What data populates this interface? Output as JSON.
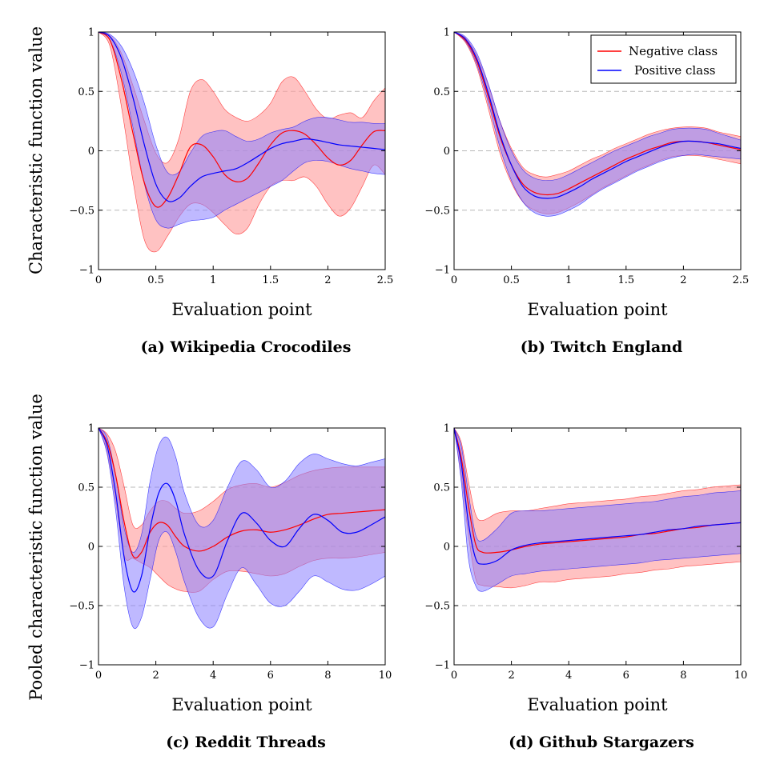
{
  "figure": {
    "ylabel_top": "Characteristic function value",
    "ylabel_bottom": "Pooled characteristic function value"
  },
  "legend": {
    "negative": "Negative class",
    "positive": "Positive class"
  },
  "colors": {
    "negative": "#ff0000",
    "positive": "#0000ff",
    "negative_fill": "#ff9a9a",
    "positive_fill": "#8a80ff",
    "overlap_fill": "#a06ed8"
  },
  "chart_data": [
    {
      "type": "area",
      "caption": "(a) Wikipedia Crocodiles",
      "xlabel": "Evaluation point",
      "xlim": [
        0,
        2.5
      ],
      "ylim": [
        -1,
        1
      ],
      "xticks": [
        0,
        0.5,
        1,
        1.5,
        2,
        2.5
      ],
      "xtick_labels": [
        "0",
        "0.5",
        "1",
        "1.5",
        "2",
        "2.5"
      ],
      "yticks": [
        -1,
        -0.5,
        0,
        0.5,
        1
      ],
      "ytick_labels": [
        "−1",
        "−0.5",
        "0",
        "0.5",
        "1"
      ],
      "grid": "dashed horizontal at -0.5, 0, 0.5",
      "series": [
        {
          "name": "Negative class",
          "x": [
            0,
            0.1,
            0.2,
            0.3,
            0.4,
            0.5,
            0.6,
            0.7,
            0.8,
            0.9,
            1.0,
            1.1,
            1.2,
            1.3,
            1.4,
            1.5,
            1.6,
            1.7,
            1.8,
            1.9,
            2.0,
            2.1,
            2.2,
            2.3,
            2.4,
            2.5
          ],
          "mean": [
            1,
            0.93,
            0.6,
            0.15,
            -0.27,
            -0.47,
            -0.4,
            -0.2,
            0.03,
            0.05,
            -0.05,
            -0.2,
            -0.26,
            -0.23,
            -0.1,
            0.05,
            0.15,
            0.17,
            0.14,
            0.05,
            -0.06,
            -0.12,
            -0.08,
            0.05,
            0.16,
            0.17
          ],
          "upper": [
            1,
            0.97,
            0.82,
            0.55,
            0.25,
            -0.02,
            -0.1,
            0.1,
            0.5,
            0.6,
            0.5,
            0.35,
            0.28,
            0.25,
            0.3,
            0.4,
            0.58,
            0.62,
            0.5,
            0.35,
            0.27,
            0.3,
            0.32,
            0.28,
            0.42,
            0.53
          ],
          "lower": [
            1,
            0.88,
            0.37,
            -0.25,
            -0.75,
            -0.85,
            -0.72,
            -0.56,
            -0.45,
            -0.45,
            -0.52,
            -0.62,
            -0.7,
            -0.65,
            -0.45,
            -0.3,
            -0.25,
            -0.25,
            -0.22,
            -0.3,
            -0.45,
            -0.55,
            -0.48,
            -0.3,
            -0.12,
            -0.2
          ]
        },
        {
          "name": "Positive class",
          "x": [
            0,
            0.1,
            0.2,
            0.3,
            0.4,
            0.5,
            0.6,
            0.7,
            0.8,
            0.9,
            1.0,
            1.1,
            1.2,
            1.3,
            1.4,
            1.5,
            1.6,
            1.7,
            1.8,
            1.9,
            2.0,
            2.1,
            2.2,
            2.3,
            2.4,
            2.5
          ],
          "mean": [
            1,
            0.96,
            0.78,
            0.45,
            0.05,
            -0.28,
            -0.42,
            -0.4,
            -0.3,
            -0.22,
            -0.19,
            -0.17,
            -0.15,
            -0.1,
            -0.04,
            0.02,
            0.06,
            0.08,
            0.1,
            0.09,
            0.07,
            0.05,
            0.04,
            0.03,
            0.02,
            0.01
          ],
          "upper": [
            1,
            0.98,
            0.88,
            0.68,
            0.4,
            0.05,
            -0.18,
            -0.18,
            -0.02,
            0.12,
            0.16,
            0.17,
            0.12,
            0.08,
            0.1,
            0.15,
            0.18,
            0.2,
            0.25,
            0.28,
            0.28,
            0.26,
            0.24,
            0.24,
            0.23,
            0.23
          ],
          "lower": [
            1,
            0.93,
            0.65,
            0.2,
            -0.28,
            -0.58,
            -0.65,
            -0.62,
            -0.59,
            -0.58,
            -0.56,
            -0.5,
            -0.45,
            -0.4,
            -0.35,
            -0.3,
            -0.25,
            -0.17,
            -0.1,
            -0.08,
            -0.09,
            -0.12,
            -0.15,
            -0.17,
            -0.19,
            -0.2
          ]
        }
      ]
    },
    {
      "type": "area",
      "caption": "(b) Twitch England",
      "xlabel": "Evaluation point",
      "xlim": [
        0,
        2.5
      ],
      "ylim": [
        -1,
        1
      ],
      "xticks": [
        0,
        0.5,
        1,
        1.5,
        2,
        2.5
      ],
      "xtick_labels": [
        "0",
        "0.5",
        "1",
        "1.5",
        "2",
        "2.5"
      ],
      "yticks": [
        -1,
        -0.5,
        0,
        0.5,
        1
      ],
      "ytick_labels": [
        "−1",
        "−0.5",
        "0",
        "0.5",
        "1"
      ],
      "grid": "dashed horizontal at -0.5, 0, 0.5",
      "legend_position": "top-right",
      "series": [
        {
          "name": "Negative class",
          "x": [
            0,
            0.1,
            0.2,
            0.3,
            0.4,
            0.5,
            0.6,
            0.7,
            0.8,
            0.9,
            1.0,
            1.1,
            1.2,
            1.3,
            1.4,
            1.5,
            1.6,
            1.7,
            1.8,
            1.9,
            2.0,
            2.1,
            2.2,
            2.3,
            2.4,
            2.5
          ],
          "mean": [
            1,
            0.93,
            0.75,
            0.45,
            0.12,
            -0.12,
            -0.28,
            -0.35,
            -0.37,
            -0.36,
            -0.32,
            -0.27,
            -0.22,
            -0.17,
            -0.12,
            -0.07,
            -0.03,
            0.01,
            0.04,
            0.07,
            0.08,
            0.08,
            0.07,
            0.05,
            0.03,
            0.01
          ],
          "upper": [
            1,
            0.95,
            0.8,
            0.55,
            0.25,
            0.02,
            -0.14,
            -0.2,
            -0.22,
            -0.2,
            -0.17,
            -0.12,
            -0.07,
            -0.03,
            0.02,
            0.06,
            0.1,
            0.14,
            0.17,
            0.19,
            0.2,
            0.2,
            0.19,
            0.16,
            0.14,
            0.12
          ],
          "lower": [
            1,
            0.91,
            0.7,
            0.35,
            -0.02,
            -0.27,
            -0.43,
            -0.5,
            -0.53,
            -0.52,
            -0.48,
            -0.43,
            -0.37,
            -0.31,
            -0.26,
            -0.21,
            -0.16,
            -0.12,
            -0.08,
            -0.05,
            -0.04,
            -0.04,
            -0.05,
            -0.07,
            -0.09,
            -0.11
          ]
        },
        {
          "name": "Positive class",
          "x": [
            0,
            0.1,
            0.2,
            0.3,
            0.4,
            0.5,
            0.6,
            0.7,
            0.8,
            0.9,
            1.0,
            1.1,
            1.2,
            1.3,
            1.4,
            1.5,
            1.6,
            1.7,
            1.8,
            1.9,
            2.0,
            2.1,
            2.2,
            2.3,
            2.4,
            2.5
          ],
          "mean": [
            1,
            0.94,
            0.77,
            0.48,
            0.14,
            -0.12,
            -0.3,
            -0.38,
            -0.4,
            -0.39,
            -0.35,
            -0.3,
            -0.24,
            -0.19,
            -0.14,
            -0.09,
            -0.05,
            -0.01,
            0.03,
            0.06,
            0.08,
            0.08,
            0.07,
            0.06,
            0.04,
            0.02
          ],
          "upper": [
            1,
            0.96,
            0.82,
            0.56,
            0.25,
            0.0,
            -0.16,
            -0.23,
            -0.25,
            -0.24,
            -0.2,
            -0.15,
            -0.1,
            -0.05,
            0.0,
            0.04,
            0.08,
            0.12,
            0.15,
            0.18,
            0.19,
            0.19,
            0.18,
            0.15,
            0.12,
            0.09
          ],
          "lower": [
            1,
            0.92,
            0.72,
            0.4,
            0.03,
            -0.25,
            -0.43,
            -0.52,
            -0.55,
            -0.54,
            -0.5,
            -0.45,
            -0.38,
            -0.32,
            -0.27,
            -0.22,
            -0.17,
            -0.13,
            -0.09,
            -0.06,
            -0.04,
            -0.03,
            -0.04,
            -0.05,
            -0.06,
            -0.07
          ]
        }
      ]
    },
    {
      "type": "area",
      "caption": "(c) Reddit Threads",
      "xlabel": "Evaluation point",
      "xlim": [
        0,
        10
      ],
      "ylim": [
        -1,
        1
      ],
      "xticks": [
        0,
        2,
        4,
        6,
        8,
        10
      ],
      "xtick_labels": [
        "0",
        "2",
        "4",
        "6",
        "8",
        "10"
      ],
      "yticks": [
        -1,
        -0.5,
        0,
        0.5,
        1
      ],
      "ytick_labels": [
        "−1",
        "−0.5",
        "0",
        "0.5",
        "1"
      ],
      "grid": "dashed horizontal at -0.5, 0, 0.5",
      "series": [
        {
          "name": "Negative class",
          "x": [
            0,
            0.3,
            0.6,
            0.9,
            1.2,
            1.5,
            1.8,
            2.1,
            2.4,
            2.7,
            3.0,
            3.5,
            4.0,
            4.5,
            5.0,
            5.5,
            6.0,
            6.5,
            7.0,
            7.5,
            8.0,
            8.5,
            9.0,
            9.5,
            10.0
          ],
          "mean": [
            1,
            0.88,
            0.6,
            0.2,
            -0.08,
            -0.05,
            0.12,
            0.2,
            0.18,
            0.08,
            0.0,
            -0.04,
            0.0,
            0.08,
            0.13,
            0.14,
            0.12,
            0.14,
            0.18,
            0.23,
            0.27,
            0.28,
            0.29,
            0.3,
            0.31
          ],
          "upper": [
            1,
            0.95,
            0.8,
            0.5,
            0.18,
            0.18,
            0.3,
            0.38,
            0.38,
            0.32,
            0.28,
            0.3,
            0.38,
            0.48,
            0.52,
            0.53,
            0.5,
            0.54,
            0.6,
            0.64,
            0.66,
            0.67,
            0.67,
            0.67,
            0.67
          ],
          "lower": [
            1,
            0.8,
            0.38,
            -0.08,
            -0.1,
            -0.14,
            -0.18,
            -0.25,
            -0.32,
            -0.36,
            -0.38,
            -0.38,
            -0.28,
            -0.21,
            -0.21,
            -0.23,
            -0.25,
            -0.23,
            -0.17,
            -0.12,
            -0.1,
            -0.1,
            -0.09,
            -0.07,
            -0.05
          ]
        },
        {
          "name": "Positive class",
          "x": [
            0,
            0.3,
            0.6,
            0.9,
            1.2,
            1.5,
            1.8,
            2.1,
            2.4,
            2.7,
            3.0,
            3.5,
            4.0,
            4.5,
            5.0,
            5.5,
            6.0,
            6.5,
            7.0,
            7.5,
            8.0,
            8.5,
            9.0,
            9.5,
            10.0
          ],
          "mean": [
            1,
            0.85,
            0.45,
            -0.1,
            -0.38,
            -0.25,
            0.15,
            0.45,
            0.53,
            0.38,
            0.1,
            -0.2,
            -0.25,
            0.05,
            0.28,
            0.2,
            0.05,
            0.0,
            0.15,
            0.27,
            0.22,
            0.12,
            0.12,
            0.18,
            0.25
          ],
          "upper": [
            1,
            0.92,
            0.6,
            0.15,
            -0.05,
            0.1,
            0.55,
            0.85,
            0.92,
            0.75,
            0.45,
            0.18,
            0.22,
            0.5,
            0.72,
            0.65,
            0.5,
            0.55,
            0.7,
            0.78,
            0.74,
            0.7,
            0.68,
            0.71,
            0.74
          ],
          "lower": [
            1,
            0.78,
            0.3,
            -0.35,
            -0.68,
            -0.6,
            -0.28,
            0.05,
            0.12,
            -0.05,
            -0.3,
            -0.6,
            -0.68,
            -0.4,
            -0.18,
            -0.32,
            -0.48,
            -0.5,
            -0.38,
            -0.25,
            -0.3,
            -0.36,
            -0.37,
            -0.32,
            -0.25
          ]
        }
      ]
    },
    {
      "type": "area",
      "caption": "(d) Github Stargazers",
      "xlabel": "Evaluation point",
      "xlim": [
        0,
        10
      ],
      "ylim": [
        -1,
        1
      ],
      "xticks": [
        0,
        2,
        4,
        6,
        8,
        10
      ],
      "xtick_labels": [
        "0",
        "2",
        "4",
        "6",
        "8",
        "10"
      ],
      "yticks": [
        -1,
        -0.5,
        0,
        0.5,
        1
      ],
      "ytick_labels": [
        "−1",
        "−0.5",
        "0",
        "0.5",
        "1"
      ],
      "grid": "dashed horizontal at -0.5, 0, 0.5",
      "series": [
        {
          "name": "Negative class",
          "x": [
            0,
            0.25,
            0.5,
            0.75,
            1.0,
            1.5,
            2.0,
            2.5,
            3.0,
            3.5,
            4.0,
            4.5,
            5.0,
            5.5,
            6.0,
            6.5,
            7.0,
            7.5,
            8.0,
            8.5,
            9.0,
            9.5,
            10.0
          ],
          "mean": [
            1,
            0.75,
            0.35,
            0.02,
            -0.05,
            -0.05,
            -0.03,
            0.0,
            0.02,
            0.03,
            0.04,
            0.05,
            0.06,
            0.07,
            0.08,
            0.1,
            0.11,
            0.13,
            0.15,
            0.16,
            0.18,
            0.19,
            0.2
          ],
          "upper": [
            1,
            0.88,
            0.55,
            0.27,
            0.22,
            0.28,
            0.3,
            0.3,
            0.32,
            0.34,
            0.36,
            0.37,
            0.38,
            0.39,
            0.4,
            0.42,
            0.43,
            0.45,
            0.47,
            0.48,
            0.5,
            0.51,
            0.52
          ],
          "lower": [
            1,
            0.6,
            0.1,
            -0.27,
            -0.33,
            -0.34,
            -0.35,
            -0.33,
            -0.3,
            -0.3,
            -0.28,
            -0.27,
            -0.26,
            -0.25,
            -0.23,
            -0.22,
            -0.2,
            -0.19,
            -0.17,
            -0.16,
            -0.15,
            -0.14,
            -0.13
          ]
        },
        {
          "name": "Positive class",
          "x": [
            0,
            0.25,
            0.5,
            0.75,
            1.0,
            1.5,
            2.0,
            2.5,
            3.0,
            3.5,
            4.0,
            4.5,
            5.0,
            5.5,
            6.0,
            6.5,
            7.0,
            7.5,
            8.0,
            8.5,
            9.0,
            9.5,
            10.0
          ],
          "mean": [
            1,
            0.7,
            0.2,
            -0.1,
            -0.15,
            -0.12,
            -0.03,
            0.01,
            0.03,
            0.04,
            0.05,
            0.06,
            0.07,
            0.08,
            0.09,
            0.1,
            0.12,
            0.14,
            0.15,
            0.17,
            0.18,
            0.19,
            0.2
          ],
          "upper": [
            1,
            0.85,
            0.45,
            0.1,
            0.05,
            0.15,
            0.28,
            0.3,
            0.3,
            0.31,
            0.32,
            0.33,
            0.34,
            0.35,
            0.36,
            0.37,
            0.38,
            0.4,
            0.42,
            0.43,
            0.45,
            0.46,
            0.47
          ],
          "lower": [
            1,
            0.55,
            -0.1,
            -0.33,
            -0.38,
            -0.32,
            -0.25,
            -0.23,
            -0.21,
            -0.2,
            -0.19,
            -0.18,
            -0.17,
            -0.16,
            -0.15,
            -0.14,
            -0.12,
            -0.11,
            -0.1,
            -0.09,
            -0.08,
            -0.07,
            -0.06
          ]
        }
      ]
    }
  ]
}
